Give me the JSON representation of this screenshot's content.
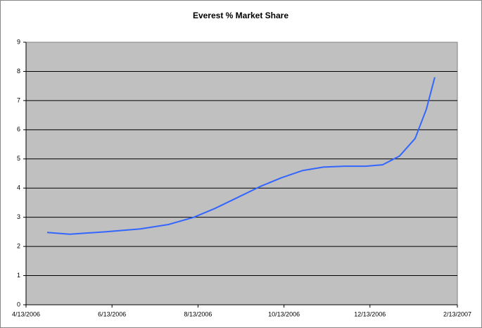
{
  "chart_data": {
    "type": "line",
    "title": "Everest % Market Share",
    "x": [
      "4/28/2006",
      "5/14/2006",
      "6/8/2006",
      "7/3/2006",
      "7/23/2006",
      "8/10/2006",
      "8/25/2006",
      "9/11/2006",
      "9/26/2006",
      "10/11/2006",
      "10/26/2006",
      "11/10/2006",
      "11/25/2006",
      "12/10/2006",
      "12/22/2006",
      "1/3/2007",
      "1/14/2007",
      "1/22/2007",
      "1/28/2007"
    ],
    "series": [
      {
        "name": "Everest",
        "color": "#3366ff",
        "values": [
          2.48,
          2.42,
          2.5,
          2.6,
          2.75,
          3.0,
          3.3,
          3.7,
          4.05,
          4.35,
          4.6,
          4.72,
          4.75,
          4.75,
          4.8,
          5.1,
          5.7,
          6.7,
          7.8
        ]
      }
    ],
    "xlim": [
      "4/13/2006",
      "2/13/2007"
    ],
    "xticks": [
      "4/13/2006",
      "6/13/2006",
      "8/13/2006",
      "10/13/2006",
      "12/13/2006",
      "2/13/2007"
    ],
    "ylim": [
      0,
      9
    ],
    "yticks": [
      0,
      1,
      2,
      3,
      4,
      5,
      6,
      7,
      8,
      9
    ],
    "grid": true
  }
}
